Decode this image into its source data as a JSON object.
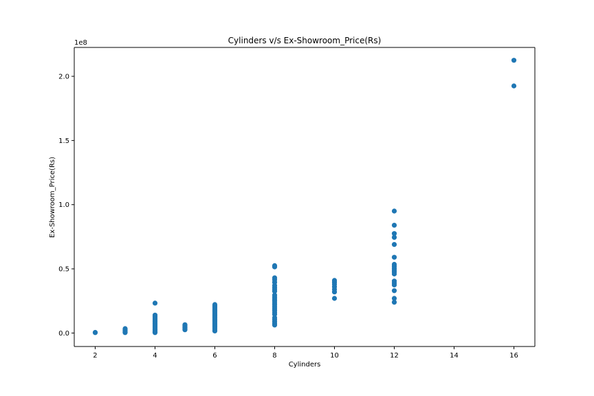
{
  "chart_data": {
    "type": "scatter",
    "title": "Cylinders v/s Ex-Showroom_Price(Rs)",
    "xlabel": "Cylinders",
    "ylabel": "Ex-Showroom_Price(Rs)",
    "y_scale_label": "1e8",
    "xlim": [
      1.3,
      16.7
    ],
    "ylim": [
      -10500000,
      222500000
    ],
    "x_ticks": [
      2,
      4,
      6,
      8,
      10,
      12,
      14,
      16
    ],
    "x_tick_labels": [
      "2",
      "4",
      "6",
      "8",
      "10",
      "12",
      "14",
      "16"
    ],
    "y_ticks": [
      0,
      50000000,
      100000000,
      150000000,
      200000000
    ],
    "y_tick_labels": [
      "0.0",
      "0.5",
      "1.0",
      "1.5",
      "2.0"
    ],
    "grid": false,
    "marker_color": "#1f77b4",
    "series": [
      {
        "points": [
          [
            2,
            300000
          ],
          [
            2,
            500000
          ],
          [
            3,
            300000
          ],
          [
            3,
            600000
          ],
          [
            3,
            1000000
          ],
          [
            3,
            1600000
          ],
          [
            3,
            2200000
          ],
          [
            3,
            2900000
          ],
          [
            3,
            3400000
          ],
          [
            4,
            300000
          ],
          [
            4,
            700000
          ],
          [
            4,
            1200000
          ],
          [
            4,
            1800000
          ],
          [
            4,
            2500000
          ],
          [
            4,
            3200000
          ],
          [
            4,
            4000000
          ],
          [
            4,
            4800000
          ],
          [
            4,
            5600000
          ],
          [
            4,
            6500000
          ],
          [
            4,
            7400000
          ],
          [
            4,
            8300000
          ],
          [
            4,
            9200000
          ],
          [
            4,
            10100000
          ],
          [
            4,
            11000000
          ],
          [
            4,
            12000000
          ],
          [
            4,
            13000000
          ],
          [
            4,
            14000000
          ],
          [
            4,
            23300000
          ],
          [
            5,
            2500000
          ],
          [
            5,
            3300000
          ],
          [
            5,
            4100000
          ],
          [
            5,
            5000000
          ],
          [
            5,
            5800000
          ],
          [
            5,
            6500000
          ],
          [
            6,
            1600000
          ],
          [
            6,
            2200000
          ],
          [
            6,
            3500000
          ],
          [
            6,
            4500000
          ],
          [
            6,
            5500000
          ],
          [
            6,
            6500000
          ],
          [
            6,
            7500000
          ],
          [
            6,
            8500000
          ],
          [
            6,
            9500000
          ],
          [
            6,
            10500000
          ],
          [
            6,
            11500000
          ],
          [
            6,
            12500000
          ],
          [
            6,
            13500000
          ],
          [
            6,
            14500000
          ],
          [
            6,
            15500000
          ],
          [
            6,
            16500000
          ],
          [
            6,
            17500000
          ],
          [
            6,
            18500000
          ],
          [
            6,
            19500000
          ],
          [
            6,
            20500000
          ],
          [
            6,
            21500000
          ],
          [
            6,
            22200000
          ],
          [
            8,
            6200000
          ],
          [
            8,
            7500000
          ],
          [
            8,
            9000000
          ],
          [
            8,
            10500000
          ],
          [
            8,
            12000000
          ],
          [
            8,
            14500000
          ],
          [
            8,
            16000000
          ],
          [
            8,
            17500000
          ],
          [
            8,
            19000000
          ],
          [
            8,
            20500000
          ],
          [
            8,
            22000000
          ],
          [
            8,
            23500000
          ],
          [
            8,
            25000000
          ],
          [
            8,
            26500000
          ],
          [
            8,
            28000000
          ],
          [
            8,
            29500000
          ],
          [
            8,
            32500000
          ],
          [
            8,
            34000000
          ],
          [
            8,
            35500000
          ],
          [
            8,
            37000000
          ],
          [
            8,
            39500000
          ],
          [
            8,
            41500000
          ],
          [
            8,
            43000000
          ],
          [
            8,
            51500000
          ],
          [
            8,
            52500000
          ],
          [
            10,
            27000000
          ],
          [
            10,
            32000000
          ],
          [
            10,
            34000000
          ],
          [
            10,
            36000000
          ],
          [
            10,
            38000000
          ],
          [
            10,
            39500000
          ],
          [
            10,
            41000000
          ],
          [
            12,
            24000000
          ],
          [
            12,
            27000000
          ],
          [
            12,
            33000000
          ],
          [
            12,
            37500000
          ],
          [
            12,
            39000000
          ],
          [
            12,
            40500000
          ],
          [
            12,
            46000000
          ],
          [
            12,
            47500000
          ],
          [
            12,
            49000000
          ],
          [
            12,
            50500000
          ],
          [
            12,
            52000000
          ],
          [
            12,
            53500000
          ],
          [
            12,
            59000000
          ],
          [
            12,
            69000000
          ],
          [
            12,
            74500000
          ],
          [
            12,
            77500000
          ],
          [
            12,
            84000000
          ],
          [
            12,
            95000000
          ],
          [
            16,
            192500000
          ],
          [
            16,
            212500000
          ]
        ]
      }
    ]
  }
}
